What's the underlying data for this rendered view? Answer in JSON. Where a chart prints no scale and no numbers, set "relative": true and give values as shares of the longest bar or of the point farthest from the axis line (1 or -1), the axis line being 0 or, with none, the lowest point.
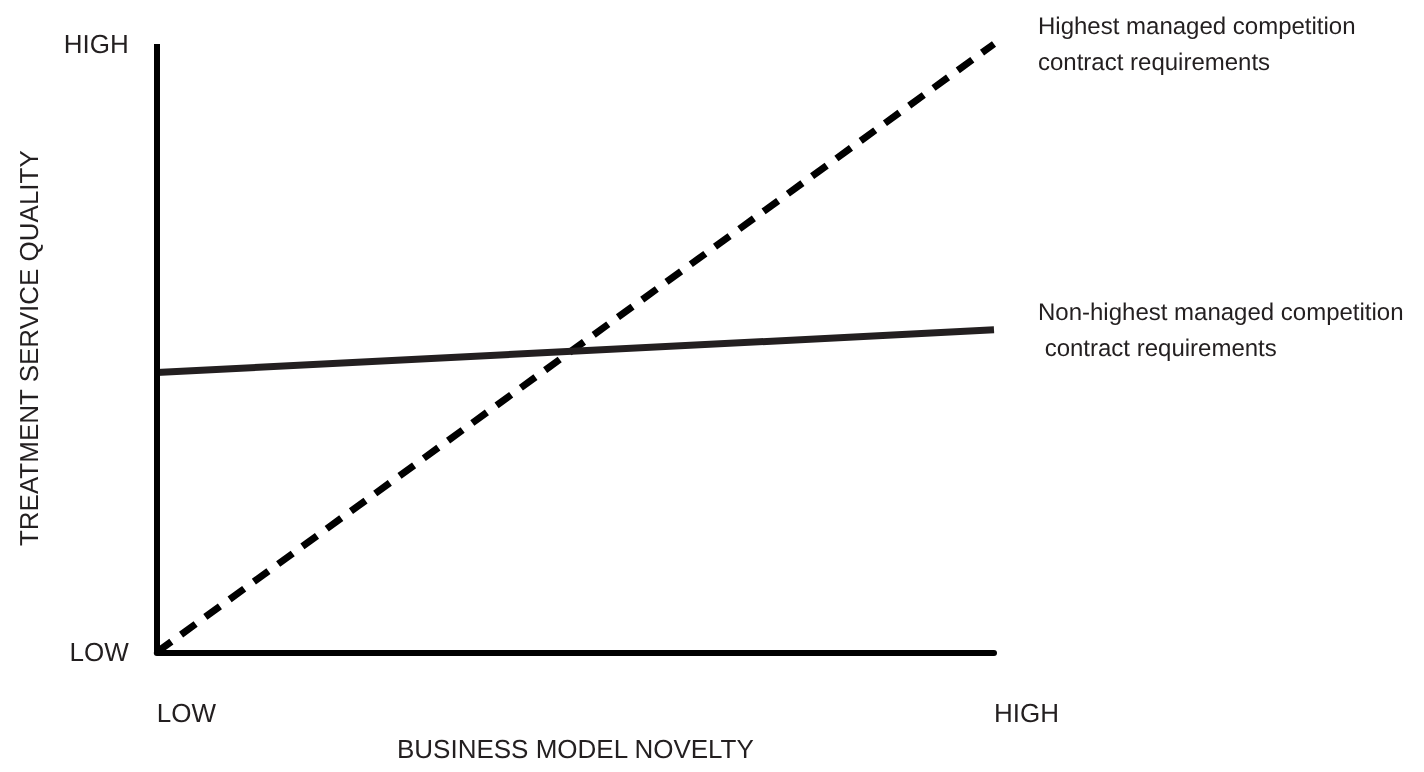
{
  "chart_data": {
    "type": "line",
    "relative": true,
    "xlabel": "BUSINESS MODEL NOVELTY",
    "ylabel": "TREATMENT SERVICE QUALITY",
    "categories": [
      "LOW",
      "HIGH"
    ],
    "annotations": [
      "LOW",
      "HIGH"
    ],
    "series": [
      {
        "name": "Highest managed competition contract requirements",
        "color": "#000000",
        "values": [
          0,
          1
        ],
        "line_style": "dashed"
      },
      {
        "name": "Non-highest managed competition contract requirements",
        "color": "#231f20",
        "values": [
          0.46,
          0.53
        ],
        "line_style": "solid"
      }
    ],
    "ref_lines": [
      {
        "axis": "x",
        "value": "LOW",
        "color": "#000000",
        "line_style": "solid"
      }
    ],
    "grid": false,
    "legend": false,
    "marker": "none"
  }
}
